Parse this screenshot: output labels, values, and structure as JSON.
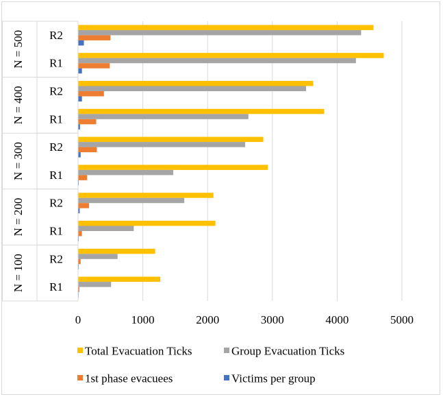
{
  "chart_data": {
    "type": "bar",
    "orientation": "horizontal",
    "title": "",
    "xlabel": "",
    "ylabel": "",
    "xlim": [
      0,
      5000
    ],
    "xticks": [
      0,
      1000,
      2000,
      3000,
      4000,
      5000
    ],
    "grid": true,
    "legend_position": "bottom",
    "groups": [
      {
        "label": "N = 100",
        "subcategories": [
          "R1",
          "R2"
        ]
      },
      {
        "label": "N = 200",
        "subcategories": [
          "R1",
          "R2"
        ]
      },
      {
        "label": "N = 300",
        "subcategories": [
          "R1",
          "R2"
        ]
      },
      {
        "label": "N = 400",
        "subcategories": [
          "R1",
          "R2"
        ]
      },
      {
        "label": "N = 500",
        "subcategories": [
          "R1",
          "R2"
        ]
      }
    ],
    "series": [
      {
        "name": "Total Evacuation Ticks",
        "color": "#FFC000",
        "values": [
          1270,
          1190,
          2120,
          2090,
          2930,
          2860,
          3800,
          3630,
          4720,
          4560
        ]
      },
      {
        "name": "Group Evacuation Ticks",
        "color": "#A5A5A5",
        "values": [
          510,
          610,
          860,
          1640,
          1470,
          2580,
          2630,
          3520,
          4290,
          4370
        ]
      },
      {
        "name": "1st phase evacuees",
        "color": "#ED7D31",
        "values": [
          20,
          40,
          60,
          170,
          140,
          290,
          280,
          400,
          490,
          500
        ]
      },
      {
        "name": "Victims per group",
        "color": "#4472C4",
        "values": [
          5,
          10,
          10,
          25,
          10,
          40,
          30,
          60,
          60,
          90
        ]
      }
    ]
  }
}
